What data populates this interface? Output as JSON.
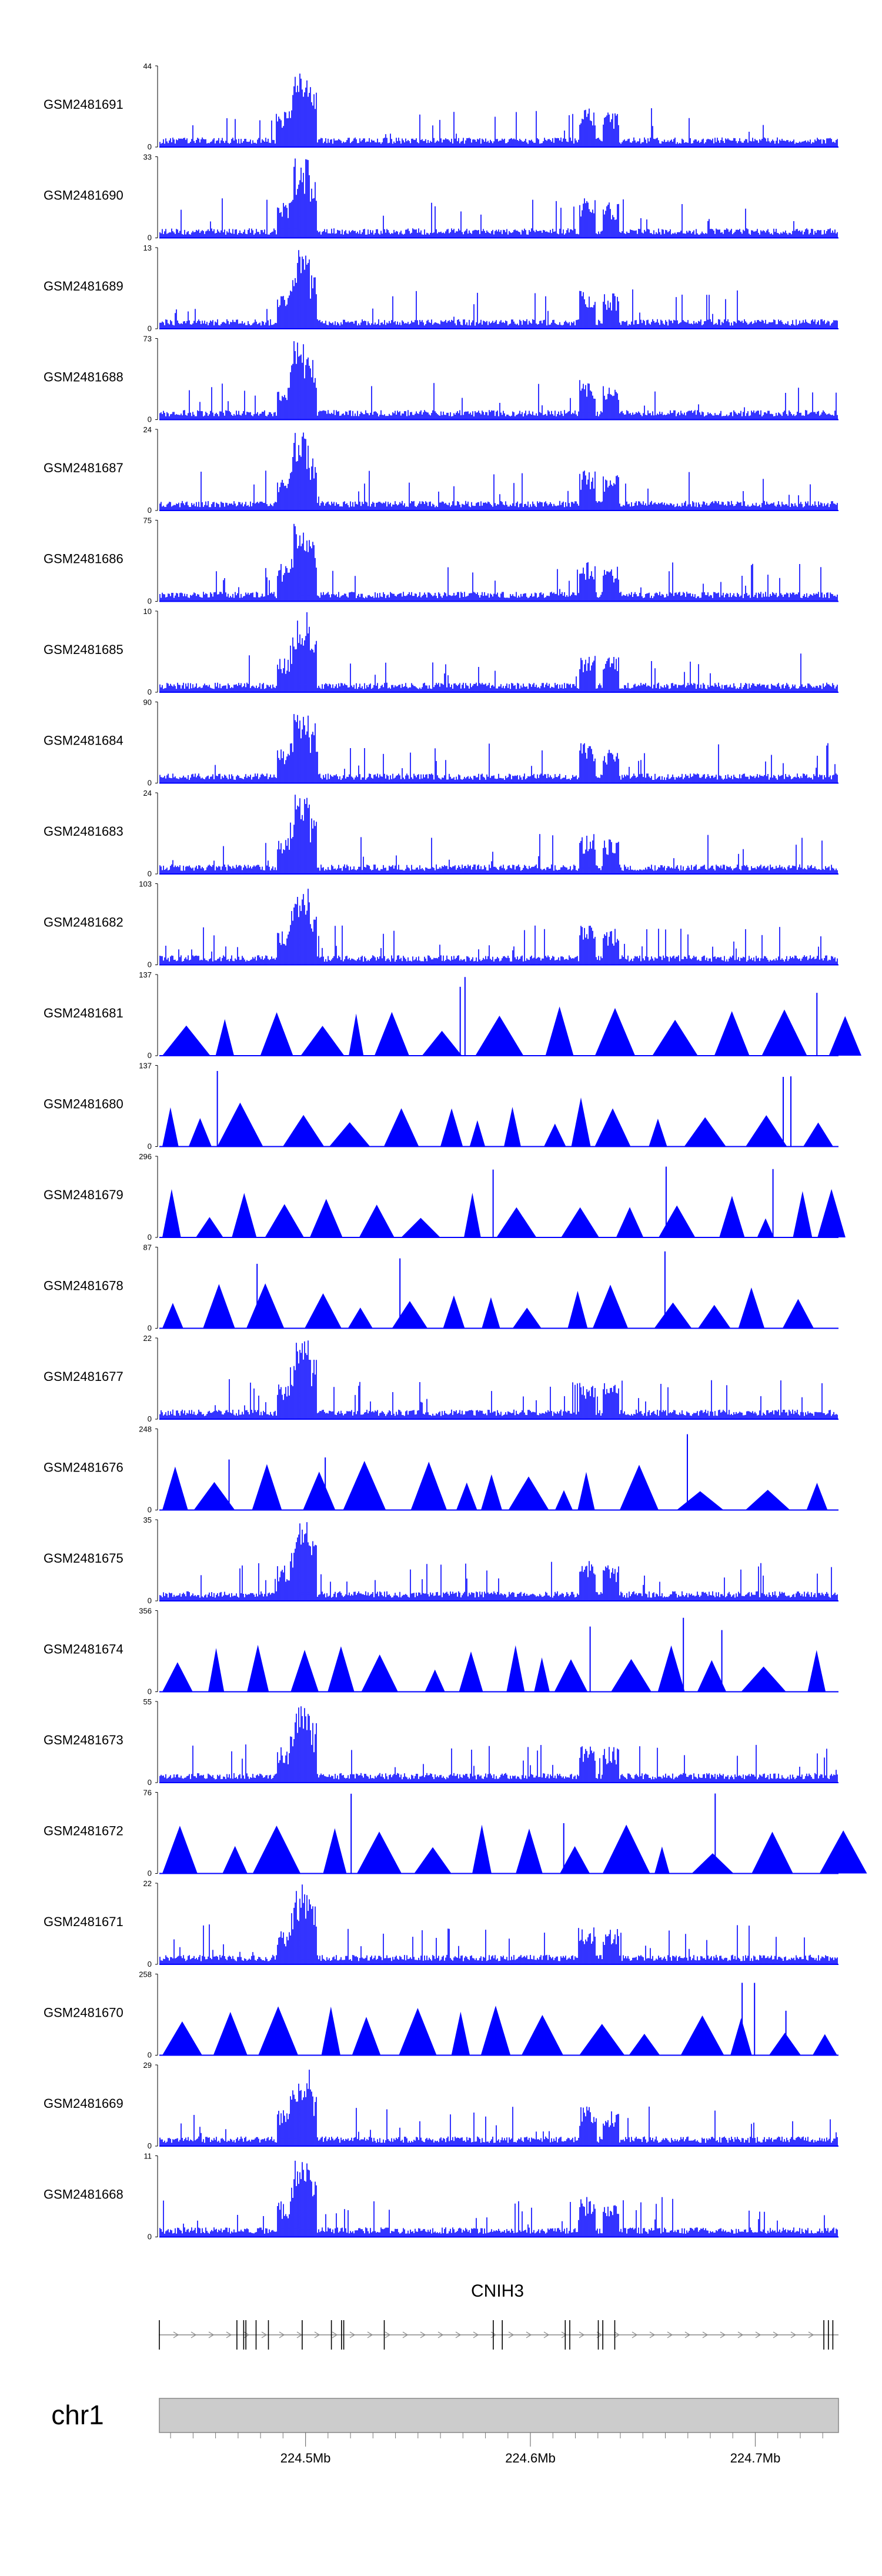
{
  "chart_data": {
    "type": "area",
    "title": "",
    "xlabel": "",
    "ylabel": "",
    "color": "#0000FF",
    "xlim": [
      224.435,
      224.737
    ],
    "xunit": "Mb",
    "tracks": [
      {
        "name": "GSM2481691",
        "ymax": 44,
        "style": "dense"
      },
      {
        "name": "GSM2481690",
        "ymax": 33,
        "style": "dense"
      },
      {
        "name": "GSM2481689",
        "ymax": 13,
        "style": "dense"
      },
      {
        "name": "GSM2481688",
        "ymax": 73,
        "style": "dense"
      },
      {
        "name": "GSM2481687",
        "ymax": 24,
        "style": "dense"
      },
      {
        "name": "GSM2481686",
        "ymax": 75,
        "style": "dense"
      },
      {
        "name": "GSM2481685",
        "ymax": 10,
        "style": "dense"
      },
      {
        "name": "GSM2481684",
        "ymax": 90,
        "style": "dense"
      },
      {
        "name": "GSM2481683",
        "ymax": 24,
        "style": "dense"
      },
      {
        "name": "GSM2481682",
        "ymax": 103,
        "style": "dense"
      },
      {
        "name": "GSM2481681",
        "ymax": 137,
        "style": "sparse"
      },
      {
        "name": "GSM2481680",
        "ymax": 137,
        "style": "sparse"
      },
      {
        "name": "GSM2481679",
        "ymax": 296,
        "style": "sparse"
      },
      {
        "name": "GSM2481678",
        "ymax": 87,
        "style": "sparse"
      },
      {
        "name": "GSM2481677",
        "ymax": 22,
        "style": "dense"
      },
      {
        "name": "GSM2481676",
        "ymax": 248,
        "style": "sparse"
      },
      {
        "name": "GSM2481675",
        "ymax": 35,
        "style": "dense"
      },
      {
        "name": "GSM2481674",
        "ymax": 356,
        "style": "sparse"
      },
      {
        "name": "GSM2481673",
        "ymax": 55,
        "style": "dense"
      },
      {
        "name": "GSM2481672",
        "ymax": 76,
        "style": "sparse"
      },
      {
        "name": "GSM2481671",
        "ymax": 22,
        "style": "dense"
      },
      {
        "name": "GSM2481670",
        "ymax": 258,
        "style": "sparse"
      },
      {
        "name": "GSM2481669",
        "ymax": 29,
        "style": "dense"
      },
      {
        "name": "GSM2481668",
        "ymax": 11,
        "style": "dense"
      }
    ],
    "gene": {
      "label": "CNIH3",
      "exons": [
        224.435,
        224.4695,
        224.4725,
        224.4735,
        224.478,
        224.4835,
        224.4985,
        224.5115,
        224.516,
        224.517,
        224.535,
        224.5835,
        224.5875,
        224.6155,
        224.6175,
        224.6302,
        224.6322,
        224.6375,
        224.7305,
        224.7325,
        224.7345
      ]
    },
    "chromosome": {
      "label": "chr1",
      "ticks": [
        224.44,
        224.45,
        224.46,
        224.47,
        224.48,
        224.49,
        224.5,
        224.51,
        224.52,
        224.53,
        224.54,
        224.55,
        224.56,
        224.57,
        224.58,
        224.59,
        224.6,
        224.61,
        224.62,
        224.63,
        224.64,
        224.65,
        224.66,
        224.67,
        224.68,
        224.69,
        224.7,
        224.71,
        224.72,
        224.73
      ],
      "tick_labels": [
        "224.5Mb",
        "224.6Mb",
        "224.7Mb"
      ],
      "tick_label_positions": [
        224.5,
        224.6,
        224.7
      ]
    }
  }
}
